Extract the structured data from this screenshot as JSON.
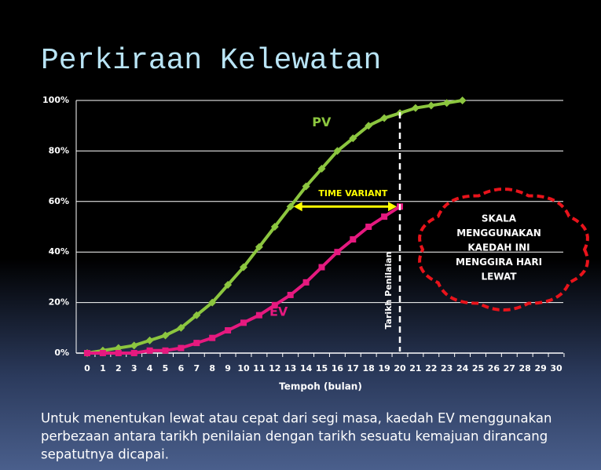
{
  "chart_data": {
    "type": "line",
    "title": "Perkiraan Kelewatan",
    "x_label": "Tempoh (bulan)",
    "x": [
      0,
      1,
      2,
      3,
      4,
      5,
      6,
      7,
      8,
      9,
      10,
      11,
      12,
      13,
      14,
      15,
      16,
      17,
      18,
      19,
      20,
      21,
      22,
      23,
      24,
      25,
      26,
      27,
      28,
      29,
      30
    ],
    "xlim": [
      0,
      30
    ],
    "xticks": [
      0,
      1,
      2,
      3,
      4,
      5,
      6,
      7,
      8,
      9,
      10,
      11,
      12,
      13,
      14,
      15,
      16,
      17,
      18,
      19,
      20,
      21,
      22,
      23,
      24,
      25,
      26,
      27,
      28,
      29,
      30
    ],
    "ylim": [
      0,
      100
    ],
    "yticks": [
      {
        "value": 0,
        "label": "0%"
      },
      {
        "value": 20,
        "label": "20%"
      },
      {
        "value": 40,
        "label": "40%"
      },
      {
        "value": 60,
        "label": "60%"
      },
      {
        "value": 80,
        "label": "80%"
      },
      {
        "value": 100,
        "label": "100%"
      }
    ],
    "grid": true,
    "series": [
      {
        "name": "PV",
        "color": "#8cc63f",
        "marker": "diamond",
        "values": [
          0,
          1,
          2,
          3,
          5,
          7,
          10,
          15,
          20,
          27,
          34,
          42,
          50,
          58,
          66,
          73,
          80,
          85,
          90,
          93,
          95,
          97,
          98,
          99,
          100,
          null,
          null,
          null,
          null,
          null,
          null
        ]
      },
      {
        "name": "EV",
        "color": "#e6197f",
        "marker": "square",
        "values": [
          0,
          0,
          0,
          0,
          1,
          1,
          2,
          4,
          6,
          9,
          12,
          15,
          19,
          23,
          28,
          34,
          40,
          45,
          50,
          54,
          58,
          null,
          null,
          null,
          null,
          null,
          null,
          null,
          null,
          null,
          null
        ]
      }
    ],
    "annotations": {
      "time_variant": "TIME VARIANT",
      "status_date": "Tarikh Penilaian",
      "cloud": [
        "SKALA",
        "MENGGUNAKAN",
        "KAEDAH INI",
        "MENGGIRA HARI",
        "LEWAT"
      ]
    }
  },
  "footer": [
    "Untuk menentukan lewat atau cepat dari segi masa, kaedah EV menggunakan",
    "perbezaan antara tarikh penilaian dengan tarikh sesuatu kemajuan dirancang",
    "sepatutnya dicapai."
  ]
}
